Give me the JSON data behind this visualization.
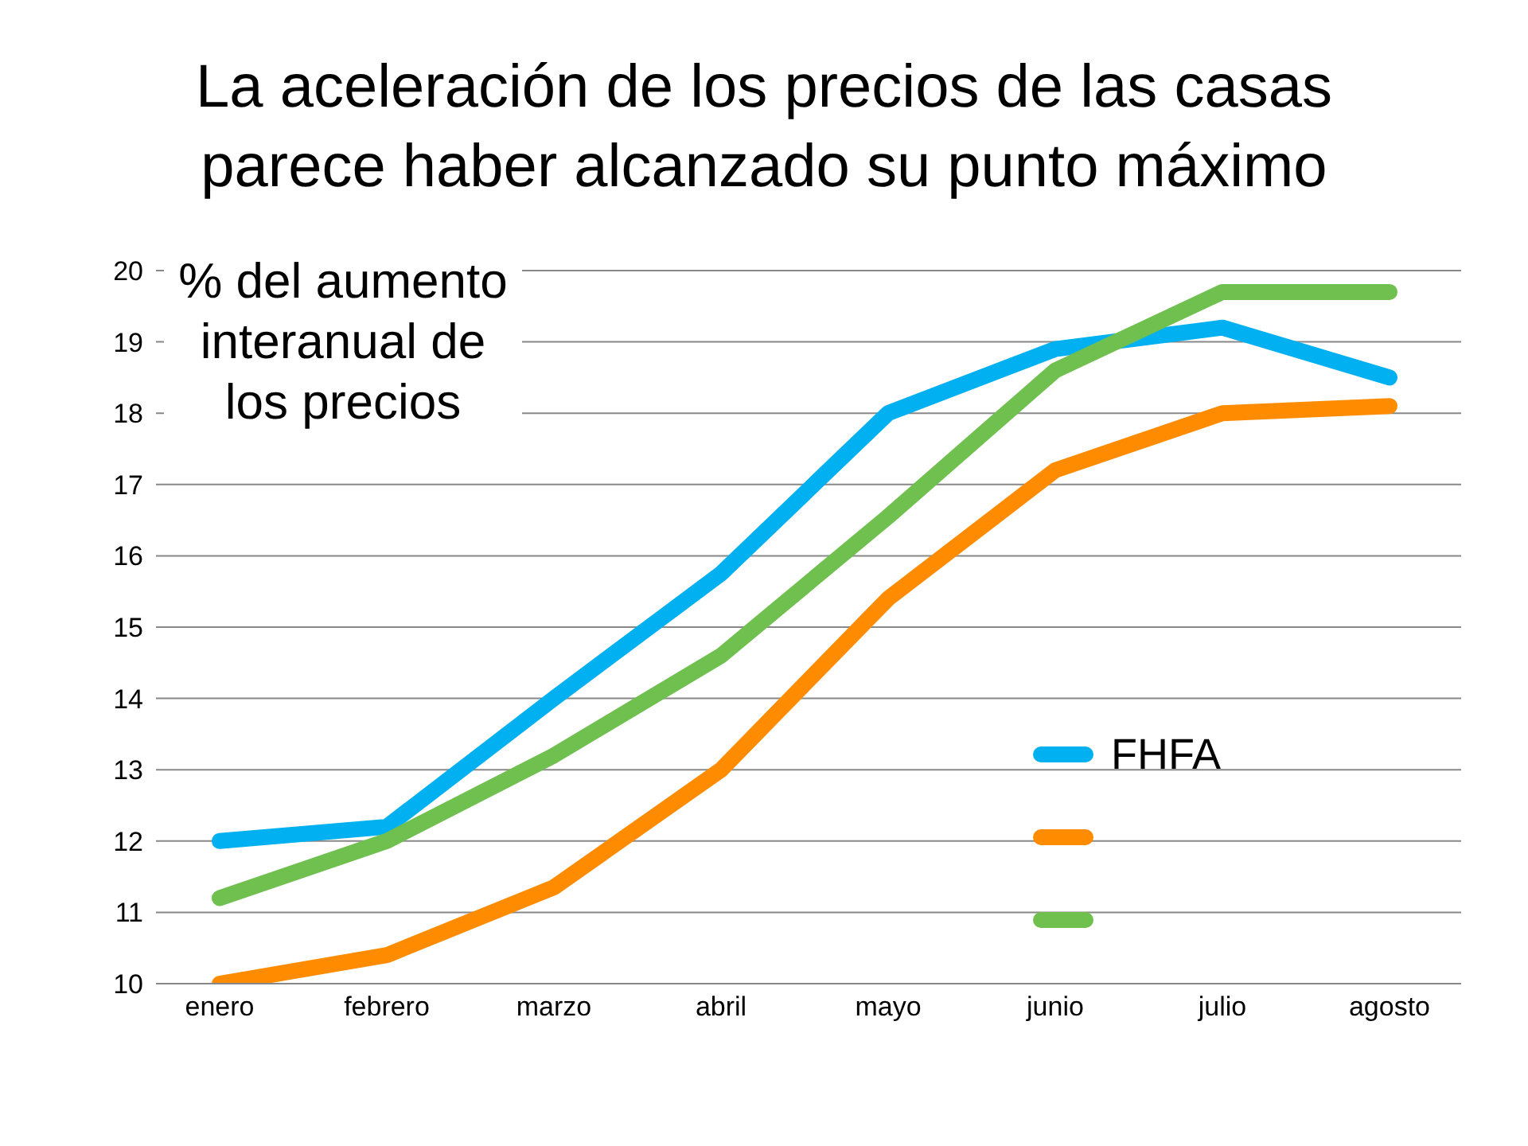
{
  "chart_data": {
    "type": "line",
    "title": "La aceleración de los precios de las casas parece haber alcanzado su punto máximo",
    "ylabel": "% del aumento interanual de los precios",
    "categories": [
      "enero",
      "febrero",
      "marzo",
      "abril",
      "mayo",
      "junio",
      "julio",
      "agosto"
    ],
    "series": [
      {
        "name": "FHFA",
        "color": "#00b0f0",
        "values": [
          12.0,
          12.2,
          14.0,
          15.75,
          18.0,
          18.9,
          19.2,
          18.5
        ]
      },
      {
        "color": "#ff8c00",
        "values": [
          10.0,
          10.4,
          11.35,
          13.0,
          15.4,
          17.2,
          18.0,
          18.1
        ]
      },
      {
        "color": "#70c050",
        "values": [
          11.2,
          12.0,
          13.2,
          14.6,
          16.55,
          18.6,
          19.7,
          19.7
        ]
      }
    ],
    "ylim": [
      10,
      20
    ],
    "yticks": [
      10,
      11,
      12,
      13,
      14,
      15,
      16,
      17,
      18,
      19,
      20
    ],
    "grid": "y",
    "legend": "bottom right",
    "marker": "none",
    "line_style": "solid"
  }
}
